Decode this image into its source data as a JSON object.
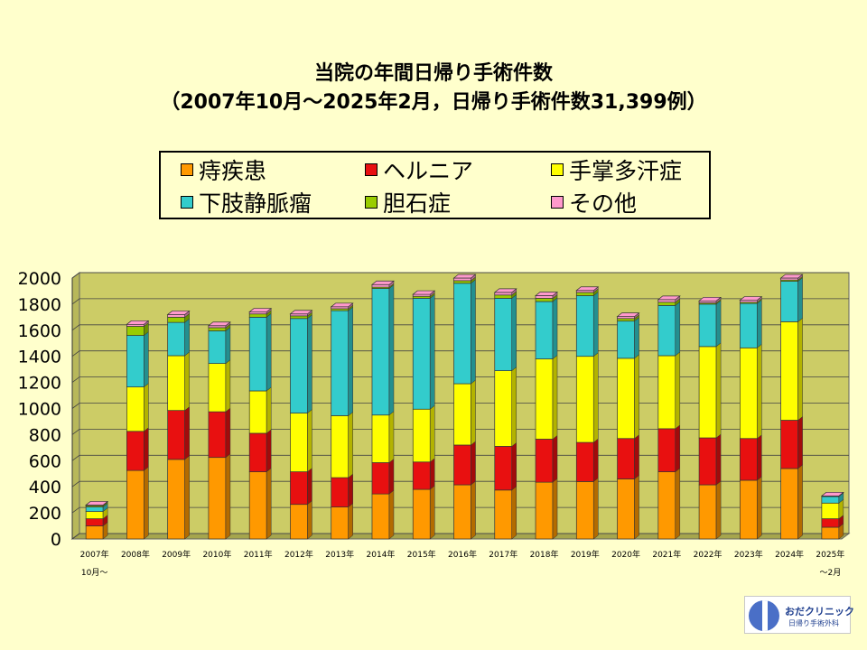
{
  "title_line1": "当院の年間日帰り手術件数",
  "title_line2": "（2007年10月～2025年2月，日帰り手術件数31,399例）",
  "chart_data": {
    "type": "bar",
    "stacked": true,
    "three_d": true,
    "categories": [
      "2007年\n10月～",
      "2008年",
      "2009年",
      "2010年",
      "2011年",
      "2012年",
      "2013年",
      "2014年",
      "2015年",
      "2016年",
      "2017年",
      "2018年",
      "2019年",
      "2020年",
      "2021年",
      "2022年",
      "2023年",
      "2024年",
      "2025年\n～2月"
    ],
    "series": [
      {
        "name": "痔疾患",
        "color": "#FF9900",
        "values": [
          100,
          525,
          610,
          625,
          515,
          265,
          245,
          345,
          380,
          415,
          375,
          435,
          440,
          460,
          515,
          415,
          450,
          540,
          90
        ]
      },
      {
        "name": "ヘルニア",
        "color": "#E81010",
        "values": [
          55,
          300,
          375,
          350,
          295,
          250,
          225,
          240,
          210,
          305,
          335,
          330,
          300,
          310,
          330,
          360,
          320,
          370,
          65
        ]
      },
      {
        "name": "手掌多汗症",
        "color": "#FFFF00",
        "values": [
          55,
          340,
          420,
          370,
          325,
          450,
          475,
          365,
          405,
          470,
          580,
          615,
          660,
          615,
          560,
          700,
          695,
          755,
          120
        ]
      },
      {
        "name": "下肢静脈瘤",
        "color": "#33CCCC",
        "values": [
          35,
          395,
          255,
          250,
          565,
          725,
          805,
          970,
          850,
          770,
          555,
          440,
          465,
          285,
          385,
          325,
          340,
          310,
          50
        ]
      },
      {
        "name": "胆石症",
        "color": "#99CC00",
        "values": [
          10,
          70,
          40,
          25,
          25,
          20,
          15,
          10,
          15,
          20,
          25,
          25,
          25,
          20,
          25,
          10,
          10,
          10,
          0
        ]
      },
      {
        "name": "その他",
        "color": "#FF99CC",
        "values": [
          5,
          15,
          20,
          15,
          15,
          15,
          15,
          20,
          15,
          20,
          20,
          20,
          15,
          15,
          20,
          15,
          15,
          15,
          5
        ]
      }
    ],
    "ylim": [
      0,
      2000
    ],
    "yticks": [
      0,
      200,
      400,
      600,
      800,
      1000,
      1200,
      1400,
      1600,
      1800,
      2000
    ],
    "legend_position": "top",
    "colors": {
      "background": "#FFFFCC",
      "plot_back_wall": "#CCCC66",
      "plot_floor": "#A6A64D"
    }
  },
  "logo": {
    "line1": "おだクリニック",
    "line2": "日帰り手術外科"
  }
}
